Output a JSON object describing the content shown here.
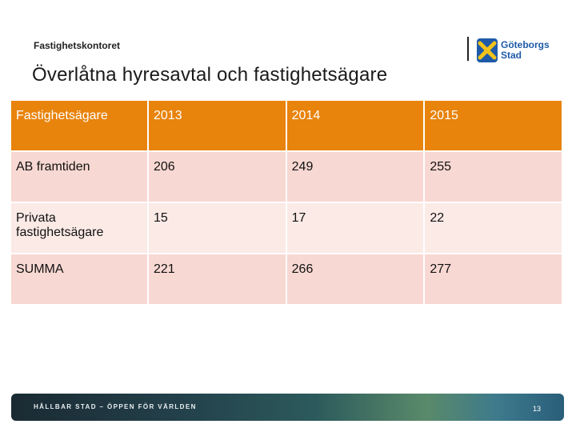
{
  "header": {
    "department": "Fastighetskontoret",
    "title": "Överlåtna hyresavtal och fastighetsägare",
    "logo_text_line1": "Göteborgs",
    "logo_text_line2": "Stad"
  },
  "table": {
    "headers": [
      "Fastighetsägare",
      "2013",
      "2014",
      "2015"
    ],
    "rows": [
      [
        "AB framtiden",
        "206",
        "249",
        "255"
      ],
      [
        "Privata fastighetsägare",
        "15",
        "17",
        "22"
      ],
      [
        "SUMMA",
        "221",
        "266",
        "277"
      ]
    ]
  },
  "footer": {
    "slogan": "HÅLLBAR STAD – ÖPPEN FÖR VÄRLDEN",
    "page_number": "13"
  },
  "colors": {
    "header_row": "#e8830c",
    "row_odd": "#f8d8d2",
    "row_even": "#fbeae6",
    "logo_blue": "#1e5aa8",
    "logo_yellow": "#f2c21b"
  }
}
